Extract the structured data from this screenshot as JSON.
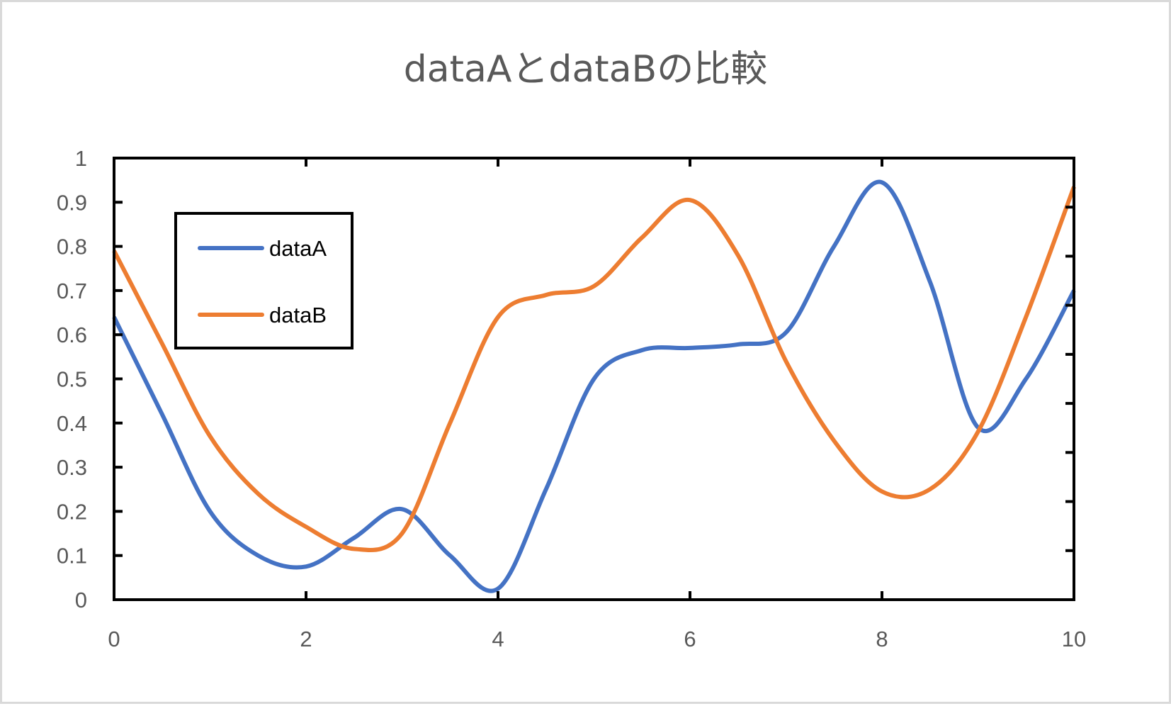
{
  "chart_data": {
    "type": "line",
    "title": "dataAとdataBの比較",
    "xlabel": "",
    "ylabel": "",
    "xlim": [
      0,
      10
    ],
    "ylim": [
      0,
      1
    ],
    "x_ticks": [
      0,
      2,
      4,
      6,
      8,
      10
    ],
    "x_tick_labels": [
      "0",
      "2",
      "4",
      "6",
      "8",
      "10"
    ],
    "y_ticks": [
      0,
      0.1,
      0.2,
      0.3,
      0.4,
      0.5,
      0.6,
      0.7,
      0.8,
      0.9,
      1
    ],
    "y_tick_labels": [
      "0",
      "0.1",
      "0.2",
      "0.3",
      "0.4",
      "0.5",
      "0.6",
      "0.7",
      "0.8",
      "0.9",
      "1"
    ],
    "grid": false,
    "smoothed": true,
    "legend_position": "upper-left-inside",
    "x": [
      0,
      0.5,
      1,
      1.5,
      2,
      2.5,
      3,
      3.5,
      4,
      4.5,
      5,
      5.5,
      6,
      6.5,
      7,
      7.5,
      8,
      8.5,
      9,
      9.5,
      10
    ],
    "series": [
      {
        "name": "dataA",
        "color": "#4472c4",
        "values": [
          0.64,
          0.42,
          0.2,
          0.1,
          0.075,
          0.14,
          0.205,
          0.1,
          0.025,
          0.25,
          0.5,
          0.565,
          0.57,
          0.578,
          0.605,
          0.8,
          0.945,
          0.72,
          0.39,
          0.5,
          0.7
        ]
      },
      {
        "name": "dataB",
        "color": "#ed7d31",
        "values": [
          0.79,
          0.58,
          0.37,
          0.24,
          0.165,
          0.115,
          0.15,
          0.4,
          0.64,
          0.69,
          0.71,
          0.82,
          0.905,
          0.78,
          0.54,
          0.36,
          0.245,
          0.25,
          0.38,
          0.64,
          0.935
        ]
      }
    ]
  },
  "legend": {
    "items": [
      {
        "label": "dataA",
        "color": "#4472c4"
      },
      {
        "label": "dataB",
        "color": "#ed7d31"
      }
    ]
  }
}
